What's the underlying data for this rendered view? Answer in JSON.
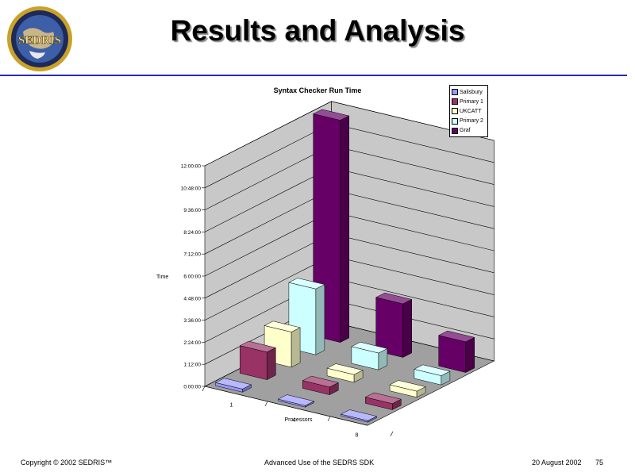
{
  "slide": {
    "title": "Results and Analysis",
    "logo_text": "SEDRIS"
  },
  "footer": {
    "copyright": "Copyright © 2002 SEDRIS™",
    "center": "Advanced Use of the SEDRS SDK",
    "date": "20 August 2002",
    "page": "75"
  },
  "colors": {
    "title_rule": "#2a2ab8",
    "wall": "#c8c8c8",
    "floor": "#a0a0a0"
  },
  "chart_data": {
    "type": "bar",
    "subtype": "3d-column",
    "title": "Syntax Checker Run Time",
    "xlabel": "Processors",
    "ylabel": "Time",
    "categories": [
      "1",
      "4",
      "8"
    ],
    "yticks": [
      "0:00:00",
      "1:12:00",
      "2:24:00",
      "3:36:00",
      "4:48:00",
      "6:00:00",
      "7:12:00",
      "8:24:00",
      "9:36:00",
      "10:48:00",
      "12:00:00"
    ],
    "ylim_minutes": [
      0,
      720
    ],
    "y_unit": "minutes",
    "grid": true,
    "legend_position": "top-right",
    "series": [
      {
        "name": "Salisbury",
        "color": "#9999ff",
        "values": [
          10,
          5,
          5
        ]
      },
      {
        "name": "Primary 1",
        "color": "#993366",
        "values": [
          90,
          25,
          20
        ]
      },
      {
        "name": "UKCATT",
        "color": "#ffffcc",
        "values": [
          115,
          25,
          20
        ]
      },
      {
        "name": "Primary 2",
        "color": "#ccffff",
        "values": [
          215,
          55,
          30
        ]
      },
      {
        "name": "Graf",
        "color": "#660066",
        "values": [
          725,
          175,
          100
        ]
      }
    ]
  }
}
